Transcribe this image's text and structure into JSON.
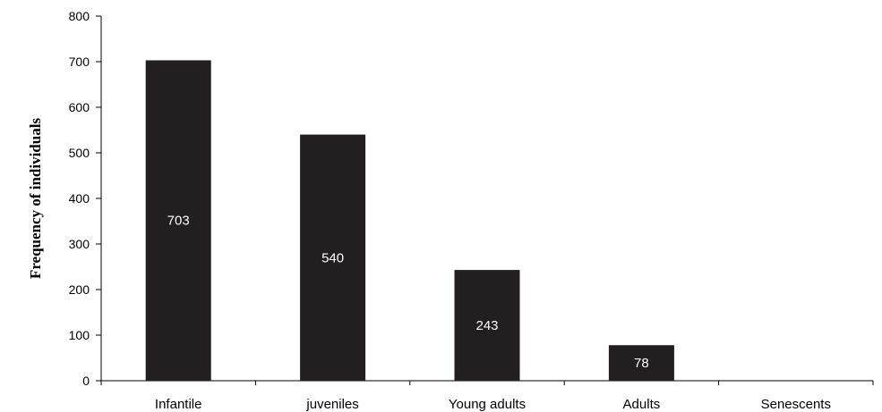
{
  "chart_data": {
    "type": "bar",
    "title": "",
    "xlabel": "",
    "ylabel": "Frequency of individuals",
    "categories": [
      "Infantile",
      "juveniles",
      "Young adults",
      "Adults",
      "Senescents"
    ],
    "values": [
      703,
      540,
      243,
      78,
      0
    ],
    "data_labels": [
      "703",
      "540",
      "243",
      "78",
      ""
    ],
    "ylim": [
      0,
      800
    ],
    "yticks": [
      0,
      100,
      200,
      300,
      400,
      500,
      600,
      700,
      800
    ],
    "grid": false,
    "legend": "none",
    "bar_color": "#231f20",
    "label_color": "#ffffff"
  }
}
